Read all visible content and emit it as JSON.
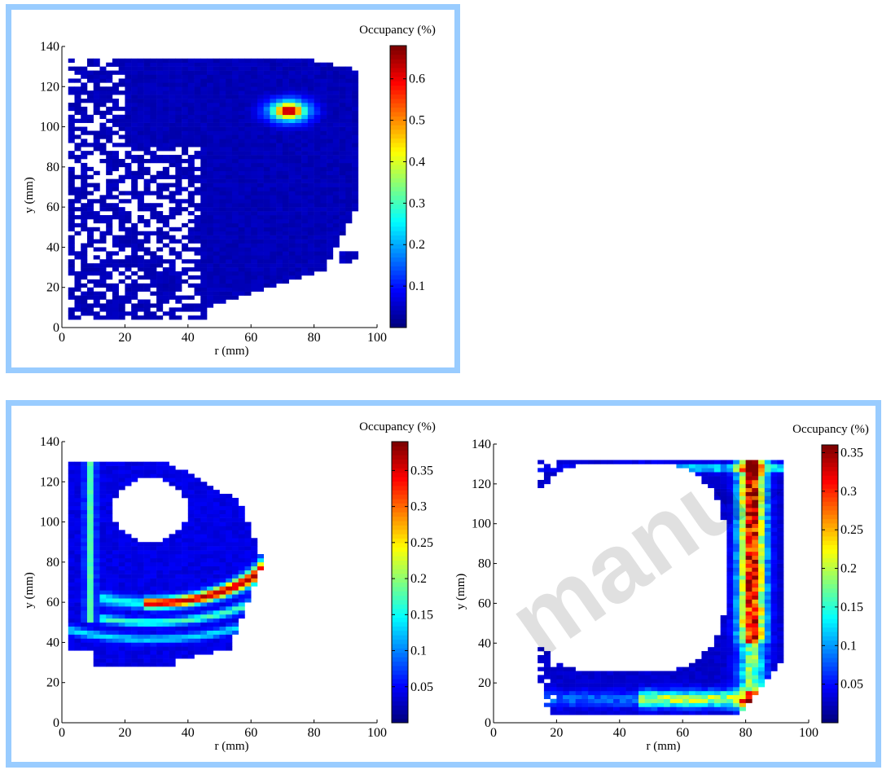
{
  "chart_data": [
    {
      "type": "heatmap",
      "title": "",
      "xlabel": "r (mm)",
      "ylabel": "y (mm)",
      "xlim": [
        0,
        100
      ],
      "ylim": [
        0,
        140
      ],
      "xticks": [
        0,
        20,
        40,
        60,
        80,
        100
      ],
      "yticks": [
        0,
        20,
        40,
        60,
        80,
        100,
        120,
        140
      ],
      "colorbar": {
        "label": "Occupancy (%)",
        "min": 0.0,
        "max": 0.68,
        "ticks": [
          0.1,
          0.2,
          0.3,
          0.4,
          0.5,
          0.6
        ]
      },
      "pattern": "spiral-into-hotspot",
      "hotspot": {
        "r": 72,
        "y": 108,
        "value": 0.68
      },
      "colormap": "jet"
    },
    {
      "type": "heatmap",
      "title": "",
      "xlabel": "r (mm)",
      "ylabel": "y (mm)",
      "xlim": [
        0,
        100
      ],
      "ylim": [
        0,
        140
      ],
      "xticks": [
        0,
        20,
        40,
        60,
        80,
        100
      ],
      "yticks": [
        0,
        20,
        40,
        60,
        80,
        100,
        120,
        140
      ],
      "colorbar": {
        "label": "Occupancy (%)",
        "min": 0.0,
        "max": 0.39,
        "ticks": [
          0.05,
          0.1,
          0.15,
          0.2,
          0.25,
          0.3,
          0.35
        ]
      },
      "pattern": "closed-loop-around-void",
      "void_center": {
        "r": 30,
        "y": 108
      },
      "colormap": "jet"
    },
    {
      "type": "heatmap",
      "title": "",
      "xlabel": "r (mm)",
      "ylabel": "y (mm)",
      "xlim": [
        0,
        100
      ],
      "ylim": [
        0,
        140
      ],
      "xticks": [
        0,
        20,
        40,
        60,
        80,
        100
      ],
      "yticks": [
        0,
        20,
        40,
        60,
        80,
        100,
        120,
        140
      ],
      "colorbar": {
        "label": "Occupancy (%)",
        "min": 0.0,
        "max": 0.36,
        "ticks": [
          0.05,
          0.1,
          0.15,
          0.2,
          0.25,
          0.3,
          0.35
        ]
      },
      "pattern": "wall-loop",
      "colormap": "jet"
    }
  ],
  "watermark": "manuscript"
}
